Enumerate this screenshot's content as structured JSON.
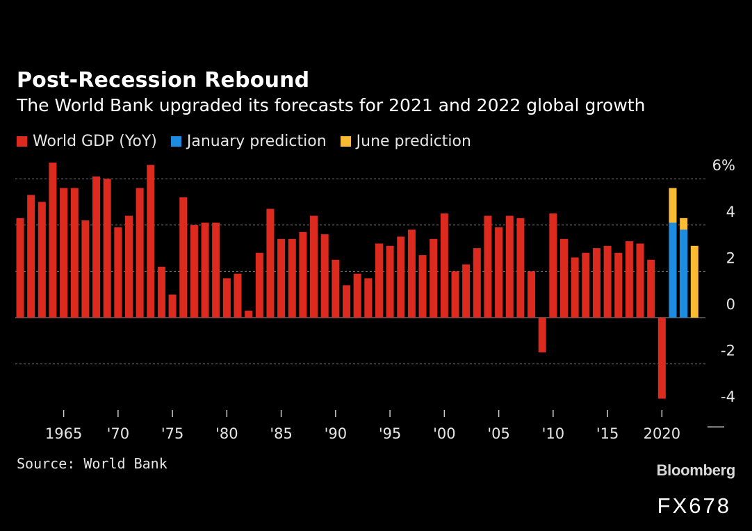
{
  "colors": {
    "background": "#000000",
    "gdp": "#dd2a1f",
    "january": "#1c8be0",
    "june": "#f8bb33",
    "grid": "#777777",
    "text": "#ffffff"
  },
  "chart_data": {
    "type": "bar",
    "title": "Post-Recession Rebound",
    "subtitle": "The World Bank upgraded its forecasts for 2021 and 2022 global growth",
    "legend": [
      {
        "name": "World GDP (YoY)",
        "color": "#dd2a1f"
      },
      {
        "name": "January prediction",
        "color": "#1c8be0"
      },
      {
        "name": "June prediction",
        "color": "#f8bb33"
      }
    ],
    "xlabel": "",
    "ylabel": "",
    "ylim": [
      -4,
      6
    ],
    "y_ticks": [
      {
        "value": 6,
        "label": "6%"
      },
      {
        "value": 4,
        "label": "4"
      },
      {
        "value": 2,
        "label": "2"
      },
      {
        "value": 0,
        "label": "0"
      },
      {
        "value": -2,
        "label": "-2"
      },
      {
        "value": -4,
        "label": "-4"
      }
    ],
    "x_ticks": [
      {
        "year": 1965,
        "label": "1965"
      },
      {
        "year": 1970,
        "label": "'70"
      },
      {
        "year": 1975,
        "label": "'75"
      },
      {
        "year": 1980,
        "label": "'80"
      },
      {
        "year": 1985,
        "label": "'85"
      },
      {
        "year": 1990,
        "label": "'90"
      },
      {
        "year": 1995,
        "label": "'95"
      },
      {
        "year": 2000,
        "label": "'00"
      },
      {
        "year": 2005,
        "label": "'05"
      },
      {
        "year": 2010,
        "label": "'10"
      },
      {
        "year": 2015,
        "label": "'15"
      },
      {
        "year": 2020,
        "label": "2020"
      }
    ],
    "series": [
      {
        "name": "World GDP (YoY)",
        "x": [
          1961,
          1962,
          1963,
          1964,
          1965,
          1966,
          1967,
          1968,
          1969,
          1970,
          1971,
          1972,
          1973,
          1974,
          1975,
          1976,
          1977,
          1978,
          1979,
          1980,
          1981,
          1982,
          1983,
          1984,
          1985,
          1986,
          1987,
          1988,
          1989,
          1990,
          1991,
          1992,
          1993,
          1994,
          1995,
          1996,
          1997,
          1998,
          1999,
          2000,
          2001,
          2002,
          2003,
          2004,
          2005,
          2006,
          2007,
          2008,
          2009,
          2010,
          2011,
          2012,
          2013,
          2014,
          2015,
          2016,
          2017,
          2018,
          2019,
          2020
        ],
        "values": [
          4.3,
          5.3,
          5.0,
          6.7,
          5.6,
          5.6,
          4.2,
          6.1,
          6.0,
          3.9,
          4.4,
          5.6,
          6.6,
          2.2,
          1.0,
          5.2,
          4.0,
          4.1,
          4.1,
          1.7,
          1.9,
          0.3,
          2.8,
          4.7,
          3.4,
          3.4,
          3.7,
          4.4,
          3.6,
          2.5,
          1.4,
          1.9,
          1.7,
          3.2,
          3.1,
          3.5,
          3.8,
          2.7,
          3.4,
          4.5,
          2.0,
          2.3,
          3.0,
          4.4,
          3.9,
          4.4,
          4.3,
          2.0,
          -1.5,
          4.5,
          3.4,
          2.6,
          2.8,
          3.0,
          3.1,
          2.8,
          3.3,
          3.2,
          2.5,
          -3.5
        ]
      },
      {
        "name": "January prediction",
        "x": [
          2021,
          2022
        ],
        "values": [
          4.1,
          3.8
        ]
      },
      {
        "name": "June prediction",
        "x": [
          2021,
          2022,
          2023
        ],
        "values": [
          5.6,
          4.3,
          3.1
        ]
      }
    ]
  },
  "footer": {
    "source": "Source: World Bank",
    "brand": "Bloomberg",
    "code": "FX678"
  }
}
